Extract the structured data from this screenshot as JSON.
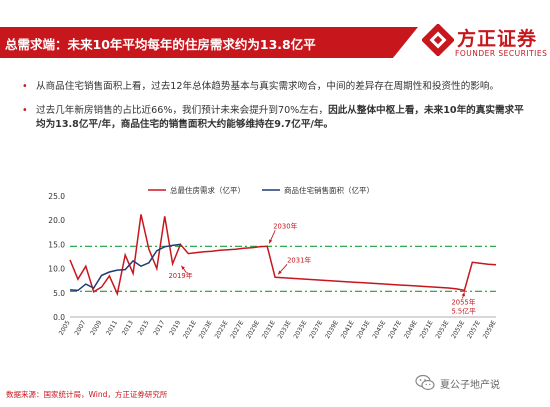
{
  "header": {
    "title": "总需求端：未来10年平均每年的住房需求约为13.8亿平"
  },
  "logo": {
    "name": "方正证券",
    "sub": "FOUNDER SECURITIES",
    "icon": "founder-logo-icon",
    "color": "#c8161d"
  },
  "bullets": [
    {
      "text": "从商品住宅销售面积上看，过去12年总体趋势基本与真实需求吻合，中间的差异存在周期性和投资性的影响。",
      "bold": ""
    },
    {
      "text": "过去几年新房销售的占比近66%，我们预计未来会提升到70%左右，",
      "bold": "因此从整体中枢上看，未来10年的真实需求平均为13.8亿平/年，商品住宅的销售面积大约能够维持在9.7亿平/年。"
    }
  ],
  "chart_data": {
    "type": "line",
    "ylim": [
      0,
      25
    ],
    "yticks": [
      "0.0",
      "5.0",
      "10.0",
      "15.0",
      "20.0",
      "25.0"
    ],
    "x": [
      "2005",
      "2006",
      "2007",
      "2008",
      "2009",
      "2010",
      "2011",
      "2012",
      "2013",
      "2014",
      "2015",
      "2016",
      "2017",
      "2018",
      "2019",
      "2020E",
      "2021E",
      "2022E",
      "2023E",
      "2024E",
      "2025E",
      "2026E",
      "2027E",
      "2028E",
      "2029E",
      "2030E",
      "2031E",
      "2032E",
      "2033E",
      "2034E",
      "2035E",
      "2036E",
      "2037E",
      "2038E",
      "2039E",
      "2040E",
      "2041E",
      "2042E",
      "2043E",
      "2044E",
      "2045E",
      "2046E",
      "2047E",
      "2048E",
      "2049E",
      "2050E",
      "2051E",
      "2052E",
      "2053E",
      "2054E",
      "2055E",
      "2056E",
      "2057E",
      "2058E",
      "2059E"
    ],
    "xtick_labels": [
      "2005",
      "2007",
      "2009",
      "2011",
      "2013",
      "2015",
      "2017",
      "2019",
      "2021E",
      "2023E",
      "2025E",
      "2027E",
      "2029E",
      "2031E",
      "2033E",
      "2035E",
      "2037E",
      "2039E",
      "2041E",
      "2043E",
      "2045E",
      "2047E",
      "2049E",
      "2051E",
      "2053E",
      "2055E",
      "2057E",
      "2059E"
    ],
    "series": [
      {
        "name": "总最住房需求（亿平）",
        "color": "#c8161d",
        "values": [
          11.8,
          7.8,
          10.5,
          5.2,
          6.2,
          8.5,
          4.8,
          12.8,
          9.0,
          21.2,
          14.0,
          10.0,
          20.8,
          11.0,
          15.0,
          13.1,
          13.3,
          13.5,
          13.6,
          13.8,
          13.9,
          14.0,
          14.2,
          14.3,
          14.5,
          14.6,
          8.2,
          8.1,
          8.0,
          7.9,
          7.8,
          7.7,
          7.6,
          7.5,
          7.4,
          7.3,
          7.2,
          7.1,
          7.0,
          6.9,
          6.8,
          6.7,
          6.6,
          6.5,
          6.4,
          6.3,
          6.2,
          6.1,
          6.0,
          5.8,
          5.5,
          11.3,
          11.1,
          10.9,
          10.8
        ]
      },
      {
        "name": "商品住宅销售面积（亿平）",
        "color": "#1f3b73",
        "values": [
          5.6,
          5.5,
          6.8,
          6.0,
          8.6,
          9.3,
          9.7,
          9.8,
          11.6,
          10.5,
          11.2,
          13.7,
          14.5,
          14.8,
          15.0,
          null,
          null,
          null,
          null,
          null,
          null,
          null,
          null,
          null,
          null,
          null,
          null,
          null,
          null,
          null,
          null,
          null,
          null,
          null,
          null,
          null,
          null,
          null,
          null,
          null,
          null,
          null,
          null,
          null,
          null,
          null,
          null,
          null,
          null,
          null,
          null,
          null,
          null,
          null,
          null
        ]
      }
    ],
    "reference_lines": [
      {
        "value": 14.6,
        "color": "#14a03c",
        "style": "dashdot"
      },
      {
        "value": 5.3,
        "color": "#14a03c",
        "style": "dashdot"
      }
    ],
    "annotations": [
      {
        "text": "2019年",
        "x_index": 14,
        "y": 11.0
      },
      {
        "text": "2030年",
        "x_index": 25,
        "y": 14.6
      },
      {
        "text": "2031年",
        "x_index": 26,
        "y": 8.2
      },
      {
        "text": "2055年",
        "x_index": 50,
        "y": 5.5
      },
      {
        "text": "5.5亿平",
        "x_index": 50,
        "y": 5.5
      }
    ]
  },
  "source": "数据来源：国家统计局，Wind，方正证券研究所",
  "watermark": {
    "icon": "wechat-icon",
    "text": "夏公子地产说"
  }
}
